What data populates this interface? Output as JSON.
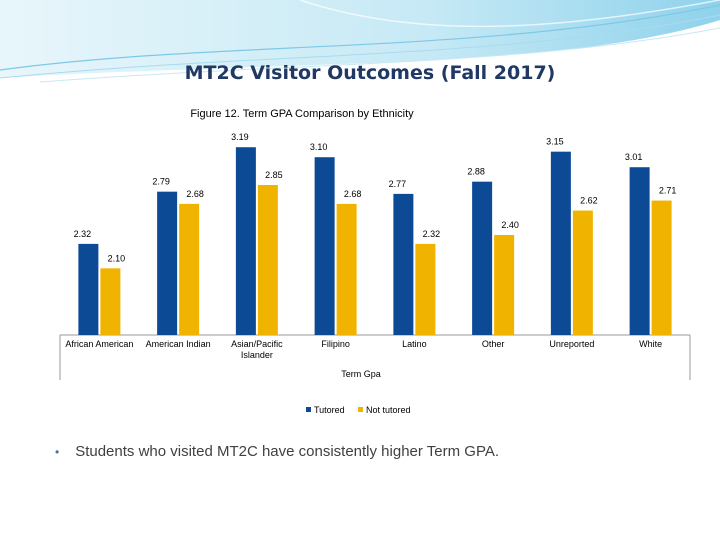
{
  "slide": {
    "title": "MT2C Visitor Outcomes (Fall 2017)",
    "bullet_text": "Students who visited MT2C have consistently higher Term GPA."
  },
  "colors": {
    "title": "#1f3864",
    "tutored": "#0d4a96",
    "not_tutored": "#f0b400",
    "banner_light": "#d9f0f8",
    "banner_mid": "#9fd8ee"
  },
  "chart_data": {
    "type": "bar",
    "title": "Figure 12.  Term GPA Comparison by Ethnicity",
    "xlabel": "Term Gpa",
    "ylabel": "",
    "ylim": [
      1.5,
      3.3
    ],
    "categories": [
      "African American",
      "American Indian",
      "Asian/Pacific Islander",
      "Filipino",
      "Latino",
      "Other",
      "Unreported",
      "White"
    ],
    "series": [
      {
        "name": "Tutored",
        "color": "#0d4a96",
        "values": [
          2.32,
          2.79,
          3.19,
          3.1,
          2.77,
          2.88,
          3.15,
          3.01
        ],
        "labels": [
          "2.32",
          "2.79",
          "3.19",
          "3.10",
          "2.77",
          "2.88",
          "3.15",
          "3.01"
        ]
      },
      {
        "name": "Not tutored",
        "color": "#f0b400",
        "values": [
          2.1,
          2.68,
          2.85,
          2.68,
          2.32,
          2.4,
          2.62,
          2.71
        ],
        "labels": [
          "2.10",
          "2.68",
          "2.85",
          "2.68",
          "2.32",
          "2.40",
          "2.62",
          "2.71"
        ]
      }
    ],
    "legend_position": "bottom",
    "grid": false
  }
}
